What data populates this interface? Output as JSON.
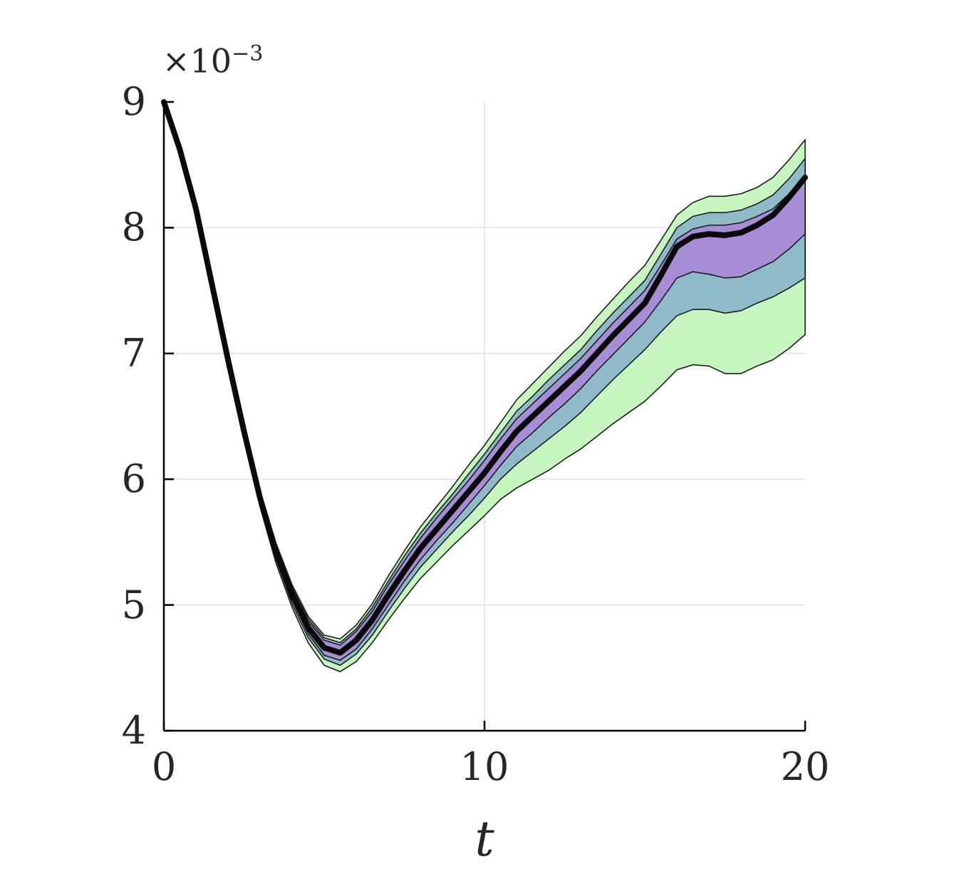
{
  "chart_data": {
    "type": "area",
    "title": "",
    "xlabel": "t",
    "ylabel": "",
    "y_exponent_base": "×10",
    "y_exponent": "−3",
    "xlim": [
      0,
      20
    ],
    "ylim": [
      4,
      9
    ],
    "x_ticks": [
      0,
      10,
      20
    ],
    "y_ticks": [
      4,
      5,
      6,
      7,
      8,
      9
    ],
    "grid": true,
    "legend": "none",
    "background": "#ffffff",
    "axis_color": "#000000",
    "grid_color": "#e2e2e2",
    "band_edge_color": "#1c1c1c",
    "x": [
      0,
      0.5,
      1,
      1.5,
      2,
      2.5,
      3,
      3.5,
      4,
      4.5,
      5,
      5.5,
      6,
      6.5,
      7,
      7.5,
      8,
      8.5,
      9,
      9.5,
      10,
      10.5,
      11,
      11.5,
      12,
      12.5,
      13,
      13.5,
      14,
      14.5,
      15,
      15.5,
      16,
      16.5,
      17,
      17.5,
      18,
      18.5,
      19,
      19.5,
      20
    ],
    "series": [
      {
        "name": "outer-credible-band",
        "band": true,
        "color": "#c7f5bf",
        "lower": [
          9.0,
          8.61,
          8.13,
          7.52,
          6.91,
          6.32,
          5.78,
          5.33,
          4.98,
          4.7,
          4.52,
          4.47,
          4.55,
          4.7,
          4.88,
          5.05,
          5.21,
          5.34,
          5.47,
          5.59,
          5.71,
          5.84,
          5.93,
          6.0,
          6.07,
          6.16,
          6.24,
          6.34,
          6.44,
          6.53,
          6.62,
          6.74,
          6.87,
          6.91,
          6.9,
          6.84,
          6.84,
          6.9,
          6.95,
          7.04,
          7.15
        ],
        "upper": [
          9.0,
          8.63,
          8.17,
          7.58,
          6.99,
          6.43,
          5.91,
          5.49,
          5.16,
          4.91,
          4.76,
          4.73,
          4.84,
          5.01,
          5.23,
          5.43,
          5.62,
          5.78,
          5.94,
          6.11,
          6.27,
          6.45,
          6.63,
          6.76,
          6.89,
          7.02,
          7.14,
          7.29,
          7.43,
          7.57,
          7.7,
          7.9,
          8.1,
          8.2,
          8.25,
          8.25,
          8.27,
          8.32,
          8.4,
          8.54,
          8.7
        ]
      },
      {
        "name": "middle-credible-band",
        "band": true,
        "color": "#8fbac8",
        "lower": [
          9.0,
          8.61,
          8.14,
          7.53,
          6.92,
          6.34,
          5.8,
          5.36,
          5.01,
          4.74,
          4.57,
          4.52,
          4.61,
          4.76,
          4.95,
          5.13,
          5.3,
          5.44,
          5.58,
          5.71,
          5.85,
          6.0,
          6.12,
          6.22,
          6.32,
          6.42,
          6.53,
          6.66,
          6.79,
          6.91,
          7.03,
          7.17,
          7.3,
          7.35,
          7.35,
          7.32,
          7.34,
          7.4,
          7.45,
          7.52,
          7.6
        ],
        "upper": [
          9.0,
          8.63,
          8.16,
          7.57,
          6.98,
          6.42,
          5.9,
          5.47,
          5.14,
          4.89,
          4.74,
          4.7,
          4.81,
          4.98,
          5.19,
          5.39,
          5.57,
          5.73,
          5.88,
          6.04,
          6.2,
          6.37,
          6.54,
          6.66,
          6.79,
          6.91,
          7.03,
          7.18,
          7.32,
          7.45,
          7.58,
          7.79,
          8.0,
          8.09,
          8.12,
          8.12,
          8.14,
          8.19,
          8.26,
          8.39,
          8.55
        ]
      },
      {
        "name": "inner-credible-band",
        "band": true,
        "color": "#a78dd6",
        "lower": [
          9.0,
          8.62,
          8.14,
          7.54,
          6.93,
          6.36,
          5.82,
          5.39,
          5.04,
          4.77,
          4.6,
          4.56,
          4.65,
          4.81,
          5.0,
          5.19,
          5.36,
          5.51,
          5.65,
          5.8,
          5.95,
          6.11,
          6.26,
          6.37,
          6.49,
          6.6,
          6.72,
          6.86,
          6.99,
          7.12,
          7.25,
          7.42,
          7.6,
          7.65,
          7.63,
          7.6,
          7.61,
          7.67,
          7.73,
          7.83,
          7.95
        ],
        "upper": [
          9.0,
          8.62,
          8.16,
          7.56,
          6.97,
          6.4,
          5.88,
          5.45,
          5.12,
          4.87,
          4.72,
          4.68,
          4.79,
          4.95,
          5.16,
          5.35,
          5.53,
          5.69,
          5.84,
          5.99,
          6.15,
          6.32,
          6.48,
          6.6,
          6.72,
          6.84,
          6.96,
          7.1,
          7.24,
          7.37,
          7.5,
          7.7,
          7.91,
          7.99,
          8.02,
          8.02,
          8.04,
          8.09,
          8.15,
          8.27,
          8.42
        ]
      },
      {
        "name": "mean-trajectory",
        "line": true,
        "color": "#0a0a0a",
        "values": [
          9.0,
          8.62,
          8.15,
          7.55,
          6.95,
          6.38,
          5.85,
          5.42,
          5.08,
          4.82,
          4.66,
          4.62,
          4.72,
          4.88,
          5.08,
          5.27,
          5.45,
          5.6,
          5.75,
          5.9,
          6.05,
          6.22,
          6.38,
          6.5,
          6.62,
          6.74,
          6.86,
          7.0,
          7.14,
          7.27,
          7.4,
          7.62,
          7.85,
          7.93,
          7.95,
          7.94,
          7.96,
          8.02,
          8.1,
          8.24,
          8.4
        ]
      }
    ]
  }
}
